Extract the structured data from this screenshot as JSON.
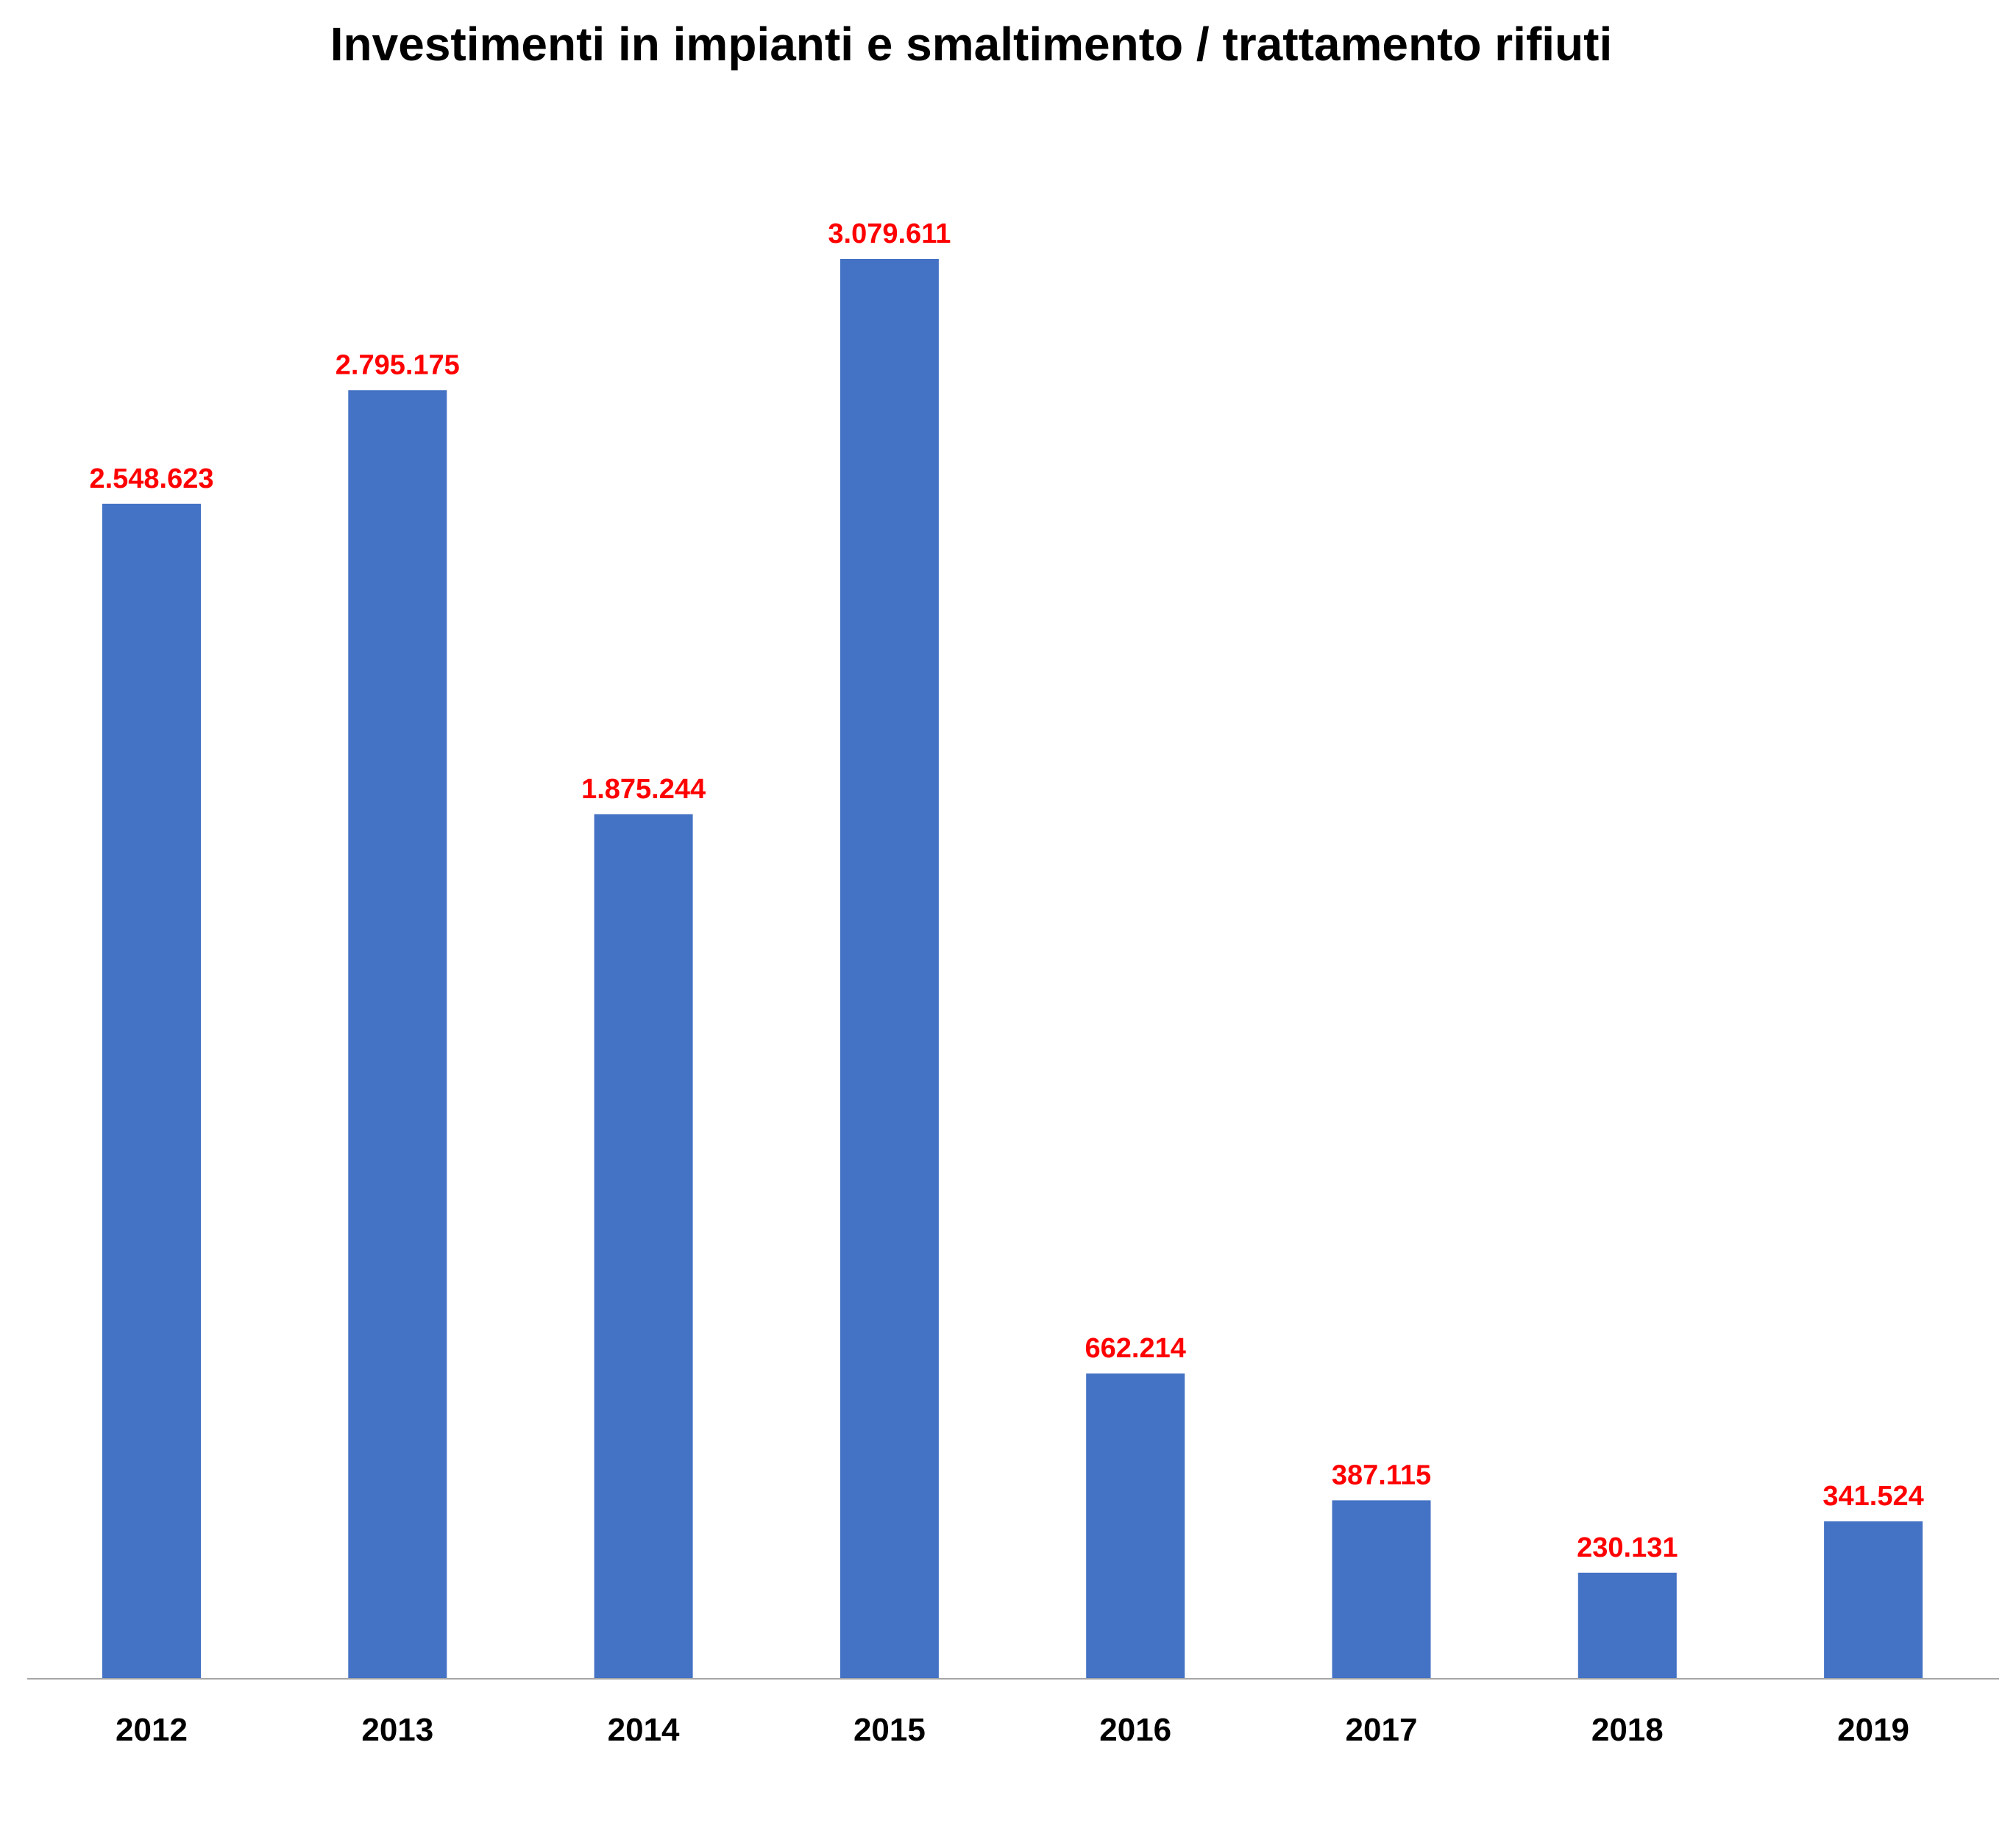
{
  "chart_data": {
    "type": "bar",
    "title": "Investimenti in impianti e smaltimento / trattamento rifiuti",
    "xlabel": "",
    "ylabel": "",
    "categories": [
      "2012",
      "2013",
      "2014",
      "2015",
      "2016",
      "2017",
      "2018",
      "2019"
    ],
    "values": [
      2548623,
      2795175,
      1875244,
      3079611,
      662214,
      387115,
      230131,
      341524
    ],
    "data_labels": [
      "2.548.623",
      "2.795.175",
      "1.875.244",
      "3.079.611",
      "662.214",
      "387.115",
      "230.131",
      "341.524"
    ],
    "ylim": [
      0,
      3420000
    ],
    "grid": false,
    "legend": "none",
    "colors": {
      "bar": "#4472C4",
      "data_label": "#FF0000",
      "axis": "#A6A6A6",
      "text": "#000000"
    }
  }
}
